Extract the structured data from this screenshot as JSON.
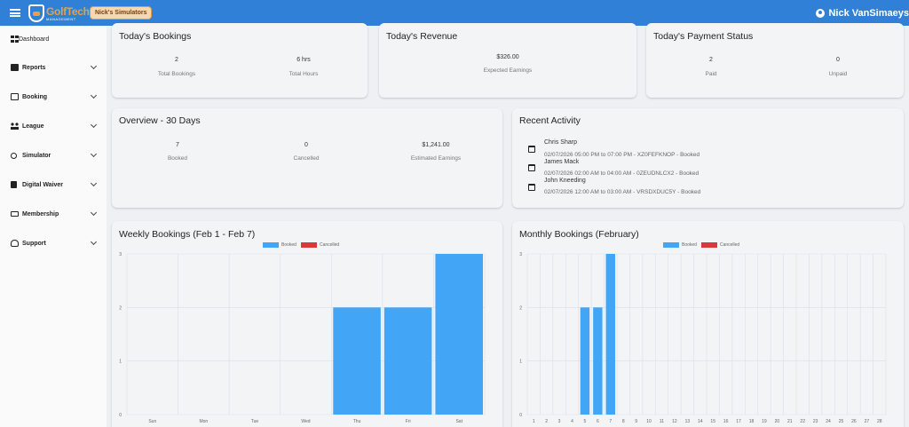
{
  "header": {
    "logo_text": "GolfTech",
    "logo_sub": "MANAGEMENT",
    "badge": "Nick's Simulators",
    "user_name": "Nick VanSimaeys"
  },
  "sidebar": {
    "items": [
      {
        "key": "dashboard",
        "label": "Dashboard",
        "icon": "dashboard-icon",
        "expandable": false
      },
      {
        "key": "reports",
        "label": "Reports",
        "icon": "reports-icon",
        "expandable": true
      },
      {
        "key": "booking",
        "label": "Booking",
        "icon": "calendar-icon",
        "expandable": true
      },
      {
        "key": "league",
        "label": "League",
        "icon": "people-icon",
        "expandable": true
      },
      {
        "key": "simulator",
        "label": "Simulator",
        "icon": "pin-icon",
        "expandable": true
      },
      {
        "key": "digital-waiver",
        "label": "Digital Waiver",
        "icon": "document-icon",
        "expandable": true
      },
      {
        "key": "membership",
        "label": "Membership",
        "icon": "monitor-icon",
        "expandable": true
      },
      {
        "key": "support",
        "label": "Support",
        "icon": "support-icon",
        "expandable": true
      }
    ]
  },
  "todays_bookings": {
    "title": "Today's Bookings",
    "stats": [
      {
        "value": "2",
        "label": "Total Bookings"
      },
      {
        "value": "6 hrs",
        "label": "Total Hours"
      }
    ]
  },
  "todays_revenue": {
    "title": "Today's Revenue",
    "value": "$326.00",
    "label": "Expected Earnings"
  },
  "payment_status": {
    "title": "Today's Payment Status",
    "stats": [
      {
        "value": "2",
        "label": "Paid"
      },
      {
        "value": "0",
        "label": "Unpaid"
      }
    ]
  },
  "overview": {
    "title": "Overview - 30 Days",
    "stats": [
      {
        "value": "7",
        "label": "Booked"
      },
      {
        "value": "0",
        "label": "Cancelled"
      },
      {
        "value": "$1,241.00",
        "label": "Estimated Earnings"
      }
    ]
  },
  "recent_activity": {
    "title": "Recent Activity",
    "items": [
      {
        "name": "Chris Sharp",
        "detail": "02/07/2026 05:00 PM to 07:00 PM - XZ0FEFKNOP - Booked"
      },
      {
        "name": "James Mack",
        "detail": "02/07/2026 02:00 AM to 04:00 AM - 0ZEUDNLCX2 - Booked"
      },
      {
        "name": "John Kneeding",
        "detail": "02/07/2026 12:00 AM to 03:00 AM - VRSDXDUC5Y - Booked"
      }
    ]
  },
  "colors": {
    "booked": "#42a5f5",
    "cancelled": "#d9383a",
    "topbar": "#2f80d6"
  },
  "chart_data": [
    {
      "type": "bar",
      "title": "Weekly Bookings (Feb 1 - Feb 7)",
      "categories": [
        "Sun",
        "Mon",
        "Tue",
        "Wed",
        "Thu",
        "Fri",
        "Sat"
      ],
      "series": [
        {
          "name": "Booked",
          "values": [
            0,
            0,
            0,
            0,
            2,
            2,
            3
          ]
        },
        {
          "name": "Cancelled",
          "values": [
            0,
            0,
            0,
            0,
            0,
            0,
            0
          ]
        }
      ],
      "ylim": [
        0,
        3
      ],
      "yticks": [
        0,
        1,
        2,
        3
      ],
      "grid": true,
      "legend": "top-center"
    },
    {
      "type": "bar",
      "title": "Monthly Bookings (February)",
      "categories": [
        "1",
        "2",
        "3",
        "4",
        "5",
        "6",
        "7",
        "8",
        "9",
        "10",
        "11",
        "12",
        "13",
        "14",
        "15",
        "16",
        "17",
        "18",
        "19",
        "20",
        "21",
        "22",
        "23",
        "24",
        "25",
        "26",
        "27",
        "28"
      ],
      "series": [
        {
          "name": "Booked",
          "values": [
            0,
            0,
            0,
            0,
            2,
            2,
            3,
            0,
            0,
            0,
            0,
            0,
            0,
            0,
            0,
            0,
            0,
            0,
            0,
            0,
            0,
            0,
            0,
            0,
            0,
            0,
            0,
            0
          ]
        },
        {
          "name": "Cancelled",
          "values": [
            0,
            0,
            0,
            0,
            0,
            0,
            0,
            0,
            0,
            0,
            0,
            0,
            0,
            0,
            0,
            0,
            0,
            0,
            0,
            0,
            0,
            0,
            0,
            0,
            0,
            0,
            0,
            0
          ]
        }
      ],
      "ylim": [
        0,
        3
      ],
      "yticks": [
        0,
        1,
        2,
        3
      ],
      "grid": true,
      "legend": "top-center"
    }
  ]
}
